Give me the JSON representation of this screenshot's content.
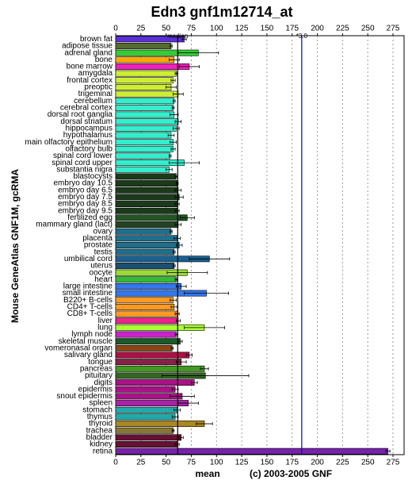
{
  "chart_data": {
    "type": "bar",
    "orientation": "horizontal",
    "title": "Edn3 gnf1m12714_at",
    "ylabel": "Mouse GeneAtlas GNF1M, gcRMA",
    "xlabel": "mean",
    "credit": "(c) 2003-2005 GNF",
    "xlim": [
      0,
      286
    ],
    "xticks": [
      0,
      25,
      50,
      75,
      100,
      125,
      150,
      175,
      200,
      225,
      250,
      275
    ],
    "grid": true,
    "median_line": {
      "label": "median",
      "value": 61.5,
      "color": "#000000"
    },
    "threshold_line": {
      "label": "*3.0",
      "value": 184.5,
      "color": "#0000cc"
    },
    "categories": [
      "brown fat",
      "adipose tissue",
      "adrenal gland",
      "bone",
      "bone marrow",
      "amygdala",
      "frontal cortex",
      "preoptic",
      "trigeminal",
      "cerebellum",
      "cerebral cortex",
      "dorsal root ganglia",
      "dorsal striatum",
      "hippocampus",
      "hypothalamus",
      "main olfactory epithelium",
      "olfactory bulb",
      "spinal cord lower",
      "spinal cord upper",
      "substantia nigra",
      "blastocysts",
      "embryo day 10.5",
      "embryo day 6.5",
      "embryo day 7.5",
      "embryo day 8.5",
      "embryo day 9.5",
      "fertilized egg",
      "mammary gland (lact)",
      "ovary",
      "placenta",
      "prostate",
      "testis",
      "umbilical cord",
      "uterus",
      "oocyte",
      "heart",
      "large intestine",
      "small intestine",
      "B220+ B-cells",
      "CD4+ T-cells",
      "CD8+ T-cells",
      "liver",
      "lung",
      "lymph node",
      "skeletal muscle",
      "vomeronasal organ",
      "salivary gland",
      "tongue",
      "pancreas",
      "pituitary",
      "digits",
      "epidermis",
      "snout epidermis",
      "spleen",
      "stomach",
      "thymus",
      "thyroid",
      "trachea",
      "bladder",
      "kidney",
      "retina"
    ],
    "values": [
      68,
      55,
      82,
      58,
      73,
      60,
      57,
      55,
      62,
      58,
      57,
      58,
      62,
      60,
      55,
      57,
      57,
      54,
      68,
      53,
      60,
      61,
      62,
      63,
      61,
      61,
      71,
      62,
      55,
      61,
      63,
      58,
      93,
      58,
      71,
      60,
      65,
      90,
      57,
      58,
      61,
      62,
      88,
      60,
      64,
      56,
      73,
      65,
      88,
      89,
      78,
      59,
      66,
      72,
      61,
      59,
      88,
      57,
      65,
      61,
      270
    ],
    "errors": [
      2,
      1,
      20,
      5,
      10,
      1,
      2,
      5,
      5,
      1,
      1,
      4,
      3,
      3,
      3,
      3,
      2,
      1,
      15,
      3,
      1,
      1,
      3,
      4,
      2,
      2,
      7,
      3,
      1,
      3,
      3,
      1,
      20,
      1,
      20,
      1,
      5,
      22,
      3,
      3,
      2,
      2,
      20,
      1,
      2,
      1,
      3,
      5,
      4,
      43,
      3,
      3,
      12,
      10,
      3,
      3,
      8,
      1,
      2,
      2,
      2
    ],
    "colors": [
      "#5a2fd8",
      "#556b2f",
      "#33cc33",
      "#ffaa00",
      "#ee22bb",
      "#ccee33",
      "#ccee33",
      "#ccee33",
      "#ccee33",
      "#33eecc",
      "#33eecc",
      "#33eecc",
      "#33eecc",
      "#33eecc",
      "#33eecc",
      "#33eecc",
      "#33eecc",
      "#33eecc",
      "#33eecc",
      "#33eecc",
      "#1a3a1a",
      "#1a3a1a",
      "#1a3a1a",
      "#1a3a1a",
      "#1a3a1a",
      "#1a3a1a",
      "#225522",
      "#224422",
      "#1f6e8c",
      "#1f6e8c",
      "#1f6e8c",
      "#1f6e8c",
      "#1a6090",
      "#1a5070",
      "#99dd33",
      "#33bb33",
      "#3377ee",
      "#3377ee",
      "#ff9922",
      "#ff9922",
      "#ff9922",
      "#ee2288",
      "#aaff33",
      "#cc22cc",
      "#1a5a2a",
      "#8b4513",
      "#aa1144",
      "#882244",
      "#449922",
      "#336622",
      "#aa1188",
      "#aa1188",
      "#aa1188",
      "#aa22aa",
      "#22aaaa",
      "#22aaaa",
      "#aa8822",
      "#887733",
      "#661133",
      "#661133",
      "#7722aa"
    ]
  }
}
